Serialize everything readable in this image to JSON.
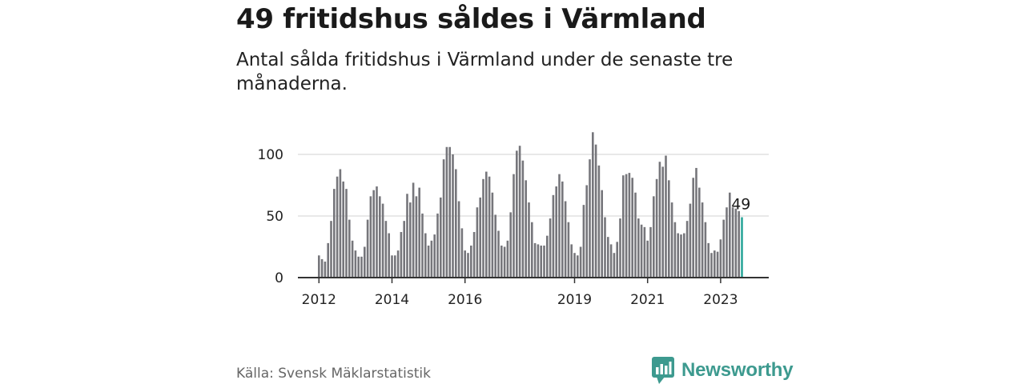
{
  "title": "49 fritidshus såldes i Värmland",
  "subtitle": "Antal sålda fritidshus i Värmland under de senaste tre månaderna.",
  "source": "Källa: Svensk Mäklarstatistik",
  "brand": "Newsworthy",
  "colors": {
    "bar": "#76767b",
    "highlight": "#2ca79a",
    "grid": "#d9d9d9",
    "axis": "#333333",
    "brand": "#3d9a8f"
  },
  "chart_data": {
    "type": "bar",
    "title": "",
    "xlabel": "",
    "ylabel": "",
    "ylim": [
      0,
      120
    ],
    "yticks": [
      0,
      50,
      100
    ],
    "xtick_labels": [
      "2012",
      "2014",
      "2016",
      "2019",
      "2021",
      "2023"
    ],
    "grid": true,
    "annotation": "49",
    "start": "2012-01",
    "values": [
      18,
      15,
      13,
      28,
      46,
      72,
      82,
      88,
      78,
      72,
      47,
      30,
      22,
      17,
      17,
      25,
      47,
      66,
      71,
      74,
      66,
      60,
      46,
      36,
      18,
      18,
      22,
      37,
      46,
      68,
      61,
      77,
      66,
      73,
      52,
      36,
      26,
      30,
      35,
      52,
      65,
      96,
      106,
      106,
      100,
      88,
      62,
      40,
      22,
      20,
      26,
      37,
      57,
      65,
      80,
      86,
      82,
      69,
      51,
      38,
      26,
      25,
      30,
      53,
      84,
      103,
      107,
      95,
      79,
      61,
      45,
      28,
      27,
      26,
      26,
      34,
      48,
      67,
      74,
      84,
      78,
      62,
      45,
      27,
      20,
      18,
      25,
      59,
      75,
      96,
      118,
      108,
      91,
      71,
      49,
      33,
      27,
      20,
      29,
      48,
      83,
      84,
      85,
      81,
      69,
      48,
      43,
      41,
      30,
      41,
      66,
      80,
      94,
      90,
      99,
      79,
      61,
      45,
      36,
      35,
      36,
      46,
      60,
      81,
      89,
      73,
      61,
      45,
      28,
      20,
      22,
      21,
      31,
      47,
      57,
      69,
      57,
      56,
      54,
      49
    ]
  }
}
